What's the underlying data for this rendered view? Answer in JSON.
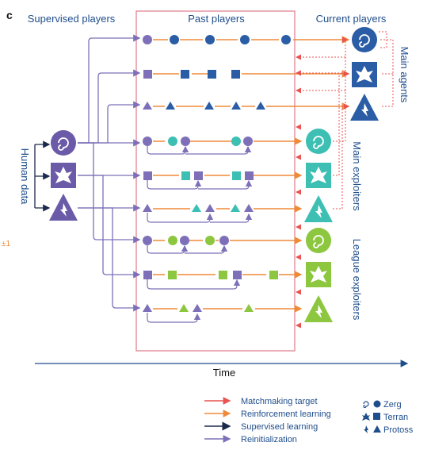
{
  "panel_letter": "c",
  "headers": {
    "supervised": "Supervised players",
    "past": "Past players",
    "current": "Current players"
  },
  "side_labels": {
    "human_data": "Human data",
    "main_agents": "Main agents",
    "main_exploiters": "Main exploiters",
    "league_exploiters": "League exploiters"
  },
  "margin_mark": "±1",
  "time_label": "Time",
  "legend": {
    "lines": [
      {
        "label": "Matchmaking target",
        "color": "#e8524f"
      },
      {
        "label": "Reinforcement learning",
        "color": "#ef8a3a"
      },
      {
        "label": "Supervised learning",
        "color": "#1b2a4a"
      },
      {
        "label": "Reinitialization",
        "color": "#7d70b8"
      }
    ],
    "races": [
      {
        "label": "Zerg",
        "shape": "circle"
      },
      {
        "label": "Terran",
        "shape": "square"
      },
      {
        "label": "Protoss",
        "shape": "triangle"
      }
    ]
  },
  "colors": {
    "main_agent": "#2a5da6",
    "main_exploiter": "#3dbfb3",
    "league_exploiter": "#8dc63f",
    "supervised": "#6a5aa8",
    "frame": "#e07a8a",
    "matchmaking": "#e8524f",
    "reinforcement": "#ef8a3a",
    "header_text": "#1f4e8c",
    "margin_mark": "#ef8a3a"
  },
  "icons": {
    "zerg": "zerg-icon",
    "terran": "terran-icon",
    "protoss": "protoss-icon"
  }
}
